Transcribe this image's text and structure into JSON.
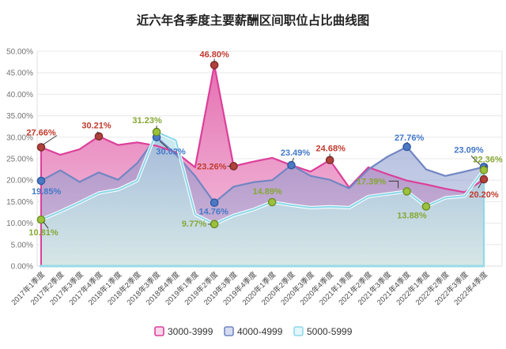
{
  "chart_data": {
    "type": "area",
    "title": "近六年各季度主要薪酬区间职位占比曲线图",
    "ylim": [
      0,
      50
    ],
    "ytick_step": 5,
    "grid": true,
    "legend_position": "bottom",
    "y_tick_labels": [
      "0.00%",
      "5.00%",
      "10.00%",
      "15.00%",
      "20.00%",
      "25.00%",
      "30.00%",
      "35.00%",
      "40.00%",
      "45.00%",
      "50.00%"
    ],
    "categories": [
      "2017年1季度",
      "2017年2季度",
      "2017年3季度",
      "2017年4季度",
      "2018年1季度",
      "2018年2季度",
      "2018年3季度",
      "2018年4季度",
      "2019年1季度",
      "2019年2季度",
      "2019年3季度",
      "2019年4季度",
      "2020年1季度",
      "2020年2季度",
      "2020年3季度",
      "2020年4季度",
      "2021年1季度",
      "2021年2季度",
      "2021年3季度",
      "2021年4季度",
      "2022年1季度",
      "2022年2季度",
      "2022年3季度",
      "2022年4季度"
    ],
    "series": [
      {
        "name": "3000-3999",
        "line_color": "#dc3f9a",
        "area_top": "#e469ae",
        "area_bottom": "#f2c3de",
        "area_opacity_top": 0.95,
        "area_opacity_bottom": 0.92,
        "marker_fill": "#b1413c",
        "marker_stroke": "#7e2d2a",
        "label_color": "#c23a2e",
        "legend_fill": "#f8d7ea",
        "edge": "left",
        "values": [
          27.66,
          25.9,
          27.2,
          30.21,
          28.2,
          28.8,
          28.0,
          26.5,
          23.0,
          46.8,
          23.26,
          24.3,
          25.2,
          23.5,
          22.0,
          24.68,
          18.3,
          23.0,
          21.4,
          19.9,
          19.0,
          18.0,
          17.2,
          20.2
        ],
        "point_labels": [
          {
            "i": 0,
            "text": "27.66%",
            "dx": 0,
            "dy": -15,
            "anchor": "middle",
            "leader": [
              [
                2,
                -3
              ],
              [
                20,
                -15
              ]
            ]
          },
          {
            "i": 3,
            "text": "30.21%",
            "dx": -3,
            "dy": -10,
            "anchor": "middle",
            "leader": [
              [
                -2,
                -6
              ],
              [
                0,
                -2
              ]
            ]
          },
          {
            "i": 9,
            "text": "46.80%",
            "dx": 0,
            "dy": -10,
            "anchor": "middle",
            "leader": [
              [
                0,
                -8
              ],
              [
                0,
                -3
              ]
            ]
          },
          {
            "i": 10,
            "text": "23.26%",
            "dx": -9,
            "dy": 4,
            "anchor": "end",
            "leader": [
              [
                -8,
                0
              ],
              [
                -3,
                0
              ]
            ]
          },
          {
            "i": 15,
            "text": "24.68%",
            "dx": 1,
            "dy": -11,
            "anchor": "middle",
            "leader": [
              [
                0,
                -8
              ],
              [
                0,
                -3
              ]
            ]
          },
          {
            "i": 23,
            "text": "20.20%",
            "dx": 0,
            "dy": 23,
            "anchor": "middle",
            "leader": [
              [
                -7,
                11
              ],
              [
                -3,
                4
              ]
            ]
          }
        ]
      },
      {
        "name": "4000-4999",
        "line_color": "#7286c3",
        "area_top": "#8193c9",
        "area_bottom": "#a9b4da",
        "area_opacity_top": 0.58,
        "area_opacity_bottom": 0.48,
        "marker_fill": "#4c79c4",
        "marker_stroke": "#2f59a3",
        "label_color": "#4478c8",
        "legend_fill": "#d4dcf0",
        "edge": "none",
        "values": [
          19.85,
          22.3,
          19.6,
          21.8,
          20.1,
          24.0,
          30.02,
          26.0,
          21.0,
          14.76,
          18.5,
          19.5,
          20.0,
          23.49,
          21.0,
          20.1,
          18.1,
          22.5,
          25.5,
          27.76,
          22.5,
          21.0,
          22.0,
          23.09
        ],
        "point_labels": [
          {
            "i": 0,
            "text": "19.85%",
            "dx": -12,
            "dy": 17,
            "anchor": "start",
            "leader": null
          },
          {
            "i": 6,
            "text": "30.02%",
            "dx": 18,
            "dy": 22,
            "anchor": "middle",
            "leader": [
              [
                4,
                5
              ],
              [
                14,
                14
              ]
            ]
          },
          {
            "i": 9,
            "text": "14.76%",
            "dx": -1,
            "dy": 15,
            "anchor": "middle",
            "leader": null
          },
          {
            "i": 13,
            "text": "23.49%",
            "dx": 5,
            "dy": -12,
            "anchor": "middle",
            "leader": [
              [
                1,
                -4
              ],
              [
                3,
                -9
              ]
            ]
          },
          {
            "i": 19,
            "text": "27.76%",
            "dx": 3,
            "dy": -8,
            "anchor": "middle",
            "leader": [
              [
                0,
                -5
              ],
              [
                1,
                -6
              ]
            ]
          },
          {
            "i": 23,
            "text": "23.09%",
            "dx": -19,
            "dy": -18,
            "anchor": "middle",
            "leader": [
              [
                -16,
                -14
              ],
              [
                -5,
                -3
              ]
            ]
          }
        ]
      },
      {
        "name": "5000-5999",
        "line_color": "#8fd9ea",
        "area_top": "#9fd9e6",
        "area_bottom": "#d8ece7",
        "area_opacity_top": 0.55,
        "area_opacity_bottom": 0.88,
        "marker_fill": "#9cc13c",
        "marker_stroke": "#6e8f26",
        "label_color": "#86a734",
        "legend_fill": "#e3f6fb",
        "edge": "right",
        "values": [
          10.81,
          12.7,
          14.8,
          17.0,
          17.8,
          19.9,
          31.23,
          29.3,
          12.0,
          9.77,
          11.8,
          13.1,
          14.89,
          14.2,
          13.6,
          13.8,
          13.6,
          16.2,
          16.8,
          17.39,
          13.88,
          15.9,
          16.3,
          22.36
        ],
        "point_labels": [
          {
            "i": 0,
            "text": "10.81%",
            "dx": 3,
            "dy": 20,
            "anchor": "middle",
            "leader": [
              [
                3,
                3
              ],
              [
                9,
                11
              ]
            ]
          },
          {
            "i": 6,
            "text": "31.23%",
            "dx": -12,
            "dy": -11,
            "anchor": "middle",
            "leader": [
              [
                0,
                -8
              ],
              [
                0,
                -4
              ]
            ]
          },
          {
            "i": 9,
            "text": "9.77%",
            "dx": -10,
            "dy": 3,
            "anchor": "end",
            "leader": [
              [
                -8,
                0
              ],
              [
                -4,
                0
              ]
            ]
          },
          {
            "i": 12,
            "text": "14.89%",
            "dx": -6,
            "dy": -10,
            "anchor": "middle",
            "leader": null
          },
          {
            "i": 19,
            "text": "17.39%",
            "dx": -45,
            "dy": -9,
            "anchor": "middle",
            "leader": [
              [
                -23,
                -13
              ],
              [
                -11,
                -13
              ],
              [
                -11,
                -4
              ]
            ]
          },
          {
            "i": 20,
            "text": "13.88%",
            "dx": -18,
            "dy": 15,
            "anchor": "middle",
            "leader": null
          },
          {
            "i": 23,
            "text": "22.36%",
            "dx": 5,
            "dy": -10,
            "anchor": "middle",
            "leader": [
              [
                2,
                -4
              ],
              [
                4,
                -7
              ]
            ]
          }
        ]
      }
    ]
  }
}
